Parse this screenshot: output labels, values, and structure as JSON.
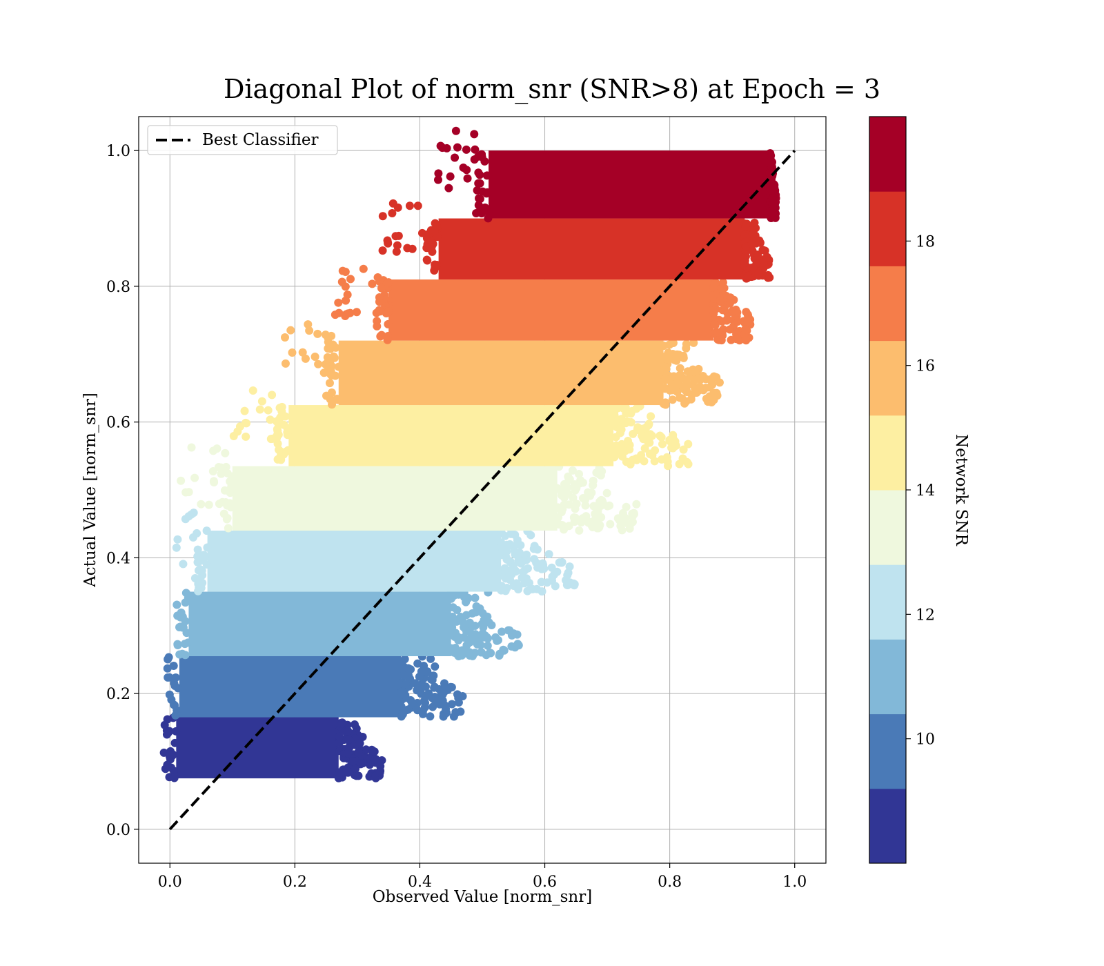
{
  "chart_data": {
    "type": "scatter",
    "title": "Diagonal Plot of norm_snr (SNR>8) at Epoch = 3",
    "xlabel": "Observed Value [norm_snr]",
    "ylabel": "Actual Value [norm_snr]",
    "xlim": [
      -0.05,
      1.05
    ],
    "ylim": [
      -0.05,
      1.05
    ],
    "x_ticks": [
      "0.0",
      "0.2",
      "0.4",
      "0.6",
      "0.8",
      "1.0"
    ],
    "y_ticks": [
      "0.0",
      "0.2",
      "0.4",
      "0.6",
      "0.8",
      "1.0"
    ],
    "x_tick_values": [
      0.0,
      0.2,
      0.4,
      0.6,
      0.8,
      1.0
    ],
    "y_tick_values": [
      0.0,
      0.2,
      0.4,
      0.6,
      0.8,
      1.0
    ],
    "grid": true,
    "legend": {
      "placement": "upper-left",
      "entries": [
        "Best Classifier"
      ]
    },
    "reference_line": {
      "name": "Best Classifier",
      "x": [
        0.0,
        1.0
      ],
      "y": [
        0.0,
        1.0
      ],
      "style": "dashed",
      "color": "#000000"
    },
    "colorbar": {
      "label": "Network SNR",
      "ticks": [
        "10",
        "12",
        "14",
        "16",
        "18"
      ],
      "tick_values": [
        10,
        12,
        14,
        16,
        18
      ],
      "range": [
        8,
        20
      ],
      "colors": [
        "#313695",
        "#4a7ab7",
        "#82b8d8",
        "#bfe3ef",
        "#eff8de",
        "#fdefa2",
        "#fcbd6e",
        "#f57d4a",
        "#d73227",
        "#a50026"
      ]
    },
    "bands": [
      {
        "snr": [
          8.0,
          9.2
        ],
        "color": "#313695",
        "y_range": [
          0.075,
          0.165
        ],
        "x_core": [
          0.01,
          0.27
        ],
        "x_tail_max": 0.34
      },
      {
        "snr": [
          9.2,
          10.4
        ],
        "color": "#4a7ab7",
        "y_range": [
          0.165,
          0.255
        ],
        "x_core": [
          0.015,
          0.37
        ],
        "x_tail_max": 0.47
      },
      {
        "snr": [
          10.4,
          11.6
        ],
        "color": "#82b8d8",
        "y_range": [
          0.255,
          0.35
        ],
        "x_core": [
          0.03,
          0.45
        ],
        "x_tail_max": 0.56
      },
      {
        "snr": [
          11.6,
          12.8
        ],
        "color": "#bfe3ef",
        "y_range": [
          0.35,
          0.44
        ],
        "x_core": [
          0.06,
          0.53
        ],
        "x_tail_max": 0.65
      },
      {
        "snr": [
          12.8,
          14.0
        ],
        "color": "#eff8de",
        "y_range": [
          0.44,
          0.535
        ],
        "x_core": [
          0.1,
          0.62
        ],
        "x_tail_max": 0.75
      },
      {
        "snr": [
          14.0,
          15.2
        ],
        "color": "#fdefa2",
        "y_range": [
          0.535,
          0.625
        ],
        "x_core": [
          0.19,
          0.71
        ],
        "x_tail_max": 0.83
      },
      {
        "snr": [
          15.2,
          16.4
        ],
        "color": "#fcbd6e",
        "y_range": [
          0.625,
          0.72
        ],
        "x_core": [
          0.27,
          0.79
        ],
        "x_tail_max": 0.88
      },
      {
        "snr": [
          16.4,
          17.6
        ],
        "color": "#f57d4a",
        "y_range": [
          0.72,
          0.81
        ],
        "x_core": [
          0.35,
          0.87
        ],
        "x_tail_max": 0.93
      },
      {
        "snr": [
          17.6,
          18.8
        ],
        "color": "#d73227",
        "y_range": [
          0.81,
          0.9
        ],
        "x_core": [
          0.43,
          0.92
        ],
        "x_tail_max": 0.96
      },
      {
        "snr": [
          18.8,
          20.0
        ],
        "color": "#a50026",
        "y_range": [
          0.9,
          1.0
        ],
        "x_core": [
          0.51,
          0.96
        ],
        "x_tail_max": 0.97
      }
    ]
  }
}
